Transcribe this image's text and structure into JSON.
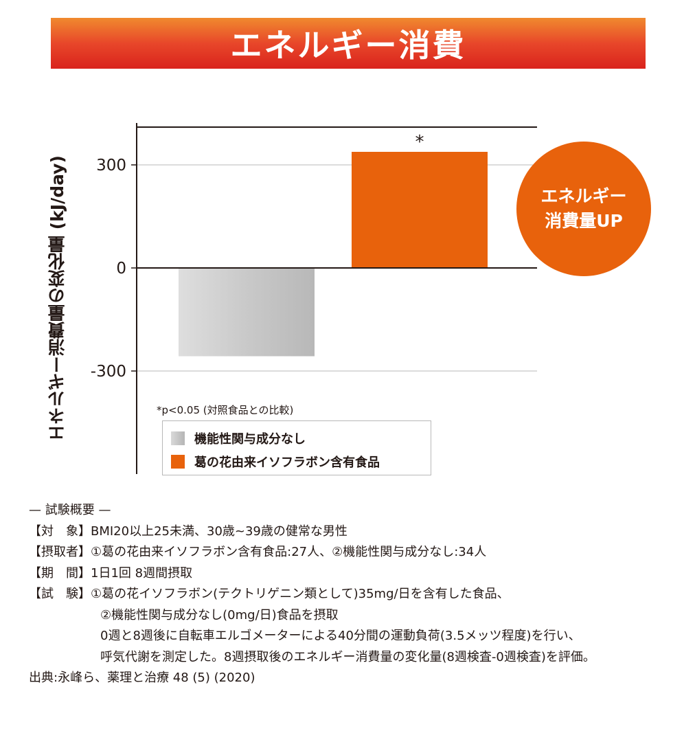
{
  "header": {
    "title": "エネルギー消費"
  },
  "chart_data": {
    "type": "bar",
    "categories": [
      "機能性関与成分なし",
      "葛の花由来イソフラボン含有食品"
    ],
    "values": [
      -257,
      338
    ],
    "colors": [
      "#c4c4c4",
      "#e8620c"
    ],
    "ylabel": "エネルギー消費量の変化量 (kJ/day)",
    "yticks": [
      300,
      0,
      -300
    ],
    "ytick_labels": [
      "300",
      "0",
      "-300"
    ],
    "ylim": [
      -595,
      405
    ],
    "grid": true,
    "significance": [
      "",
      "*"
    ],
    "legend": {
      "note": "*p<0.05 (対照食品との比較)",
      "placement": "bottom-left",
      "items": [
        {
          "label": "機能性関与成分なし",
          "color": "#c4c4c4"
        },
        {
          "label": "葛の花由来イソフラボン含有食品",
          "color": "#e8620c"
        }
      ]
    },
    "badge": {
      "line1": "エネルギー",
      "line2": "消費量UP"
    }
  },
  "summary": {
    "heading": "— 試験概要 —",
    "subject": "【対　象】BMI20以上25未満、30歳~39歳の健常な男性",
    "intake": "【摂取者】①葛の花由来イソフラボン含有食品:27人、②機能性関与成分なし:34人",
    "period": "【期　間】1日1回 8週間摂取",
    "test1": "【試　験】①葛の花イソフラボン(テクトリゲニン類として)35mg/日を含有した食品、",
    "test2": "②機能性関与成分なし(0mg/日)食品を摂取",
    "test3": "0週と8週後に自転車エルゴメーターによる40分間の運動負荷(3.5メッツ程度)を行い、",
    "test4": "呼気代謝を測定した。8週摂取後のエネルギー消費量の変化量(8週検査-0週検査)を評価。",
    "source": "出典:永峰ら、薬理と治療 48 (5) (2020)"
  }
}
